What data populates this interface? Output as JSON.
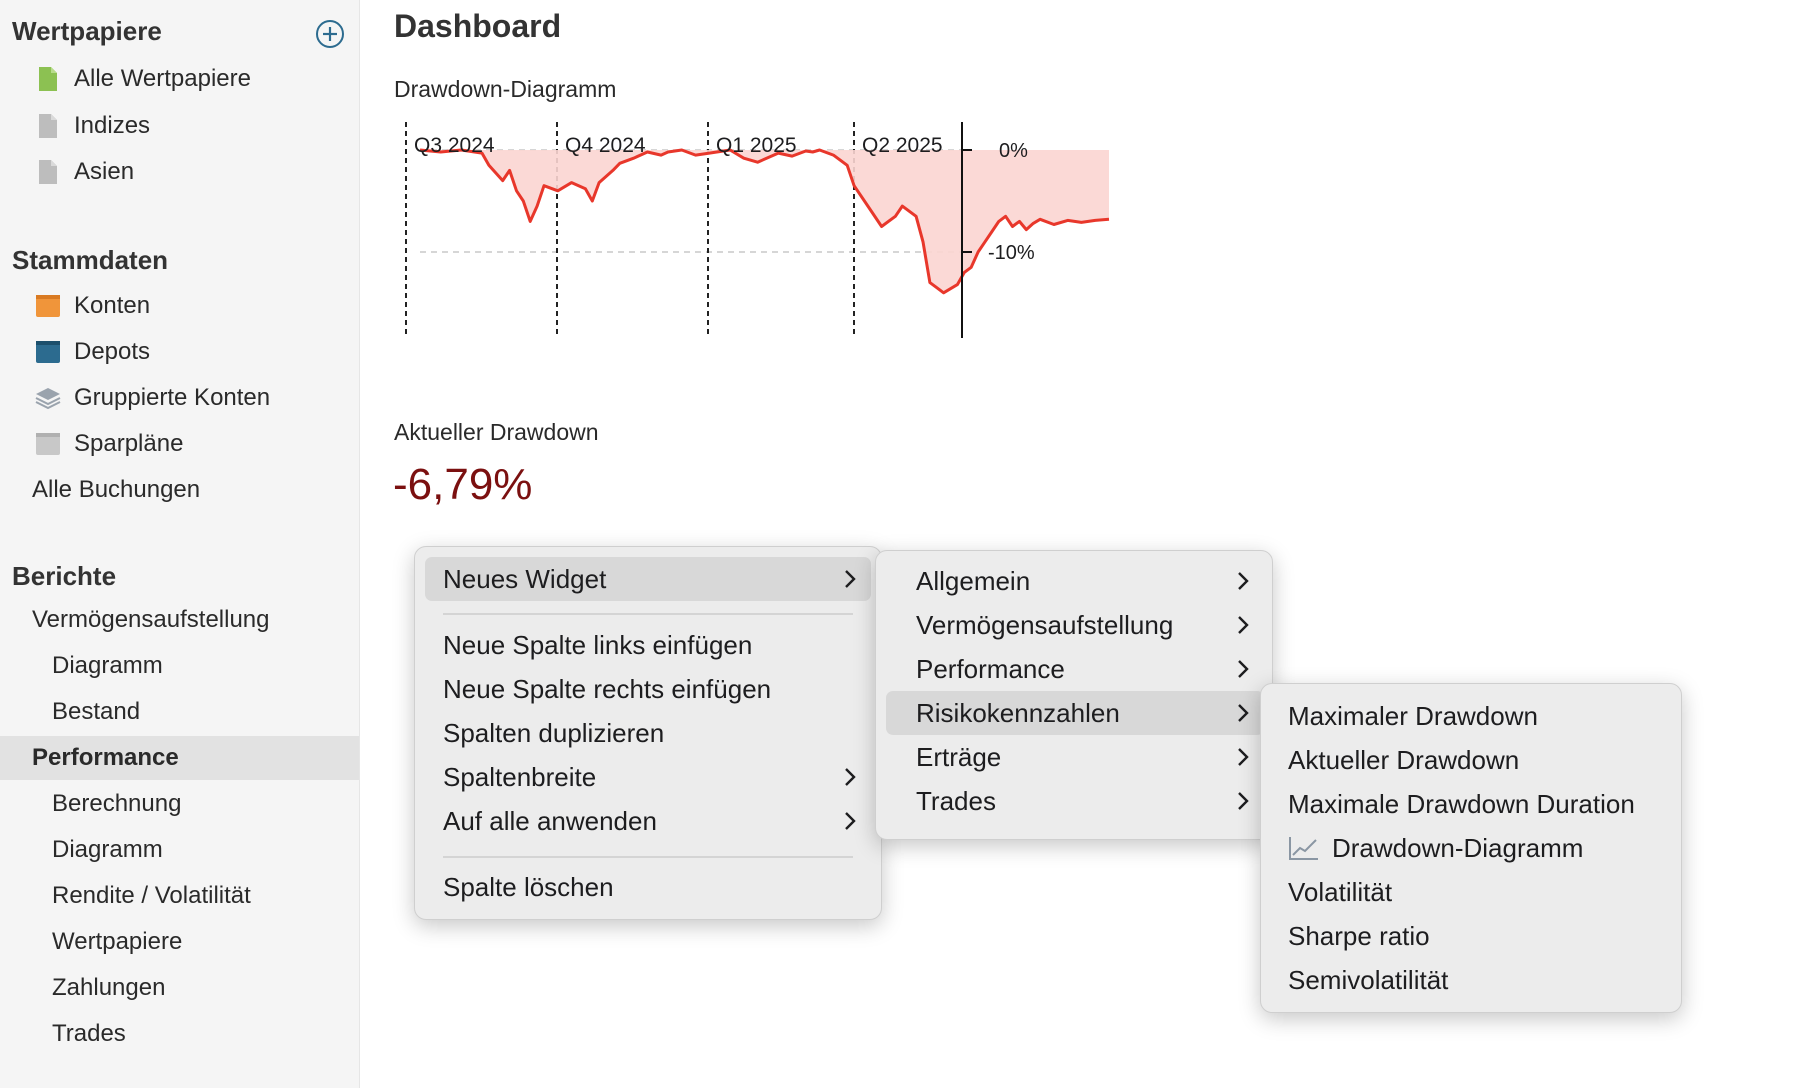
{
  "sidebar": {
    "wertpapiere": {
      "title": "Wertpapiere",
      "items": [
        "Alle Wertpapiere",
        "Indizes",
        "Asien"
      ]
    },
    "stammdaten": {
      "title": "Stammdaten",
      "items": [
        "Konten",
        "Depots",
        "Gruppierte Konten",
        "Sparpläne"
      ],
      "all_bookings": "Alle Buchungen"
    },
    "berichte": {
      "title": "Berichte",
      "items": [
        "Vermögensaufstellung",
        "Diagramm",
        "Bestand",
        "Performance",
        "Berechnung",
        "Diagramm",
        "Rendite / Volatilität",
        "Wertpapiere",
        "Zahlungen",
        "Trades"
      ],
      "active": "Performance"
    },
    "icon_colors": {
      "green": "#8cc152",
      "gray": "#bdbdbd",
      "orange": "#f0953a",
      "blue": "#2c6b8f",
      "layers": "#9aa3ad"
    }
  },
  "main": {
    "title": "Dashboard",
    "chart_widget_title": "Drawdown-Diagramm",
    "current_drawdown_title": "Aktueller Drawdown",
    "current_drawdown_value": "-6,79%"
  },
  "chart_data": {
    "type": "area",
    "quarter_labels": [
      "Q3 2024",
      "Q4 2024",
      "Q1 2025",
      "Q2 2025"
    ],
    "y_tick_labels": [
      "0%",
      "-10%"
    ],
    "ylim": [
      -15,
      0
    ],
    "line_color": "#e8372b",
    "fill_color": "#fbd5d1",
    "series": [
      {
        "x": [
          0.0,
          0.03,
          0.06,
          0.09,
          0.1,
          0.12,
          0.13,
          0.14,
          0.15,
          0.16,
          0.17,
          0.18,
          0.2,
          0.22,
          0.24,
          0.25,
          0.26,
          0.28,
          0.29,
          0.31,
          0.33,
          0.35,
          0.36,
          0.38,
          0.4,
          0.42,
          0.45,
          0.47,
          0.49,
          0.52,
          0.54,
          0.56,
          0.57,
          0.58,
          0.6,
          0.62,
          0.63,
          0.65,
          0.67,
          0.69,
          0.7,
          0.72,
          0.73,
          0.74,
          0.75,
          0.76,
          0.78,
          0.79,
          0.8,
          0.81,
          0.82,
          0.83,
          0.84,
          0.85,
          0.86,
          0.87,
          0.88,
          0.89,
          0.9,
          0.92,
          0.94,
          0.96,
          0.98,
          1.0
        ],
        "values": [
          0,
          -0.2,
          0,
          -0.3,
          -1.5,
          -3,
          -2,
          -4,
          -5,
          -7,
          -5.5,
          -3.5,
          -4,
          -3.2,
          -3.8,
          -5,
          -3.2,
          -2,
          -1.3,
          -0.8,
          -0.2,
          -0.5,
          -0.2,
          0,
          -0.5,
          -0.3,
          0,
          -0.8,
          -1.2,
          -0.3,
          -0.6,
          -0.1,
          -0.2,
          0,
          -0.5,
          -1.5,
          -3.5,
          -5.5,
          -7.5,
          -6.5,
          -5.5,
          -6.5,
          -9,
          -13,
          -13.5,
          -14,
          -13.2,
          -12,
          -11.5,
          -10,
          -9,
          -8,
          -7,
          -6.5,
          -7.5,
          -7,
          -7.8,
          -7.2,
          -6.79,
          -7.3,
          -6.9,
          -7.1,
          -6.9,
          -6.79
        ]
      }
    ]
  },
  "menus": {
    "main_menu": {
      "items": [
        "Neues Widget",
        "Neue Spalte links einfügen",
        "Neue Spalte rechts einfügen",
        "Spalten duplizieren",
        "Spaltenbreite",
        "Auf alle anwenden",
        "Spalte löschen"
      ],
      "highlighted": "Neues Widget"
    },
    "widget_menu": {
      "items": [
        "Allgemein",
        "Vermögensaufstellung",
        "Performance",
        "Risikokennzahlen",
        "Erträge",
        "Trades"
      ],
      "highlighted": "Risikokennzahlen"
    },
    "risk_menu": {
      "items": [
        "Maximaler Drawdown",
        "Aktueller Drawdown",
        "Maximale Drawdown Duration",
        "Drawdown-Diagramm",
        "Volatilität",
        "Sharpe ratio",
        "Semivolatilität"
      ]
    }
  }
}
